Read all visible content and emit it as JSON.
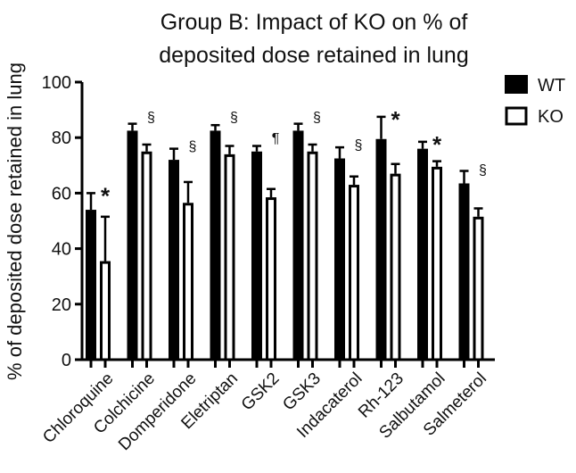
{
  "chart_data": {
    "type": "bar",
    "title_line1": "Group B: Impact of KO on % of",
    "title_line2": "deposited dose retained in lung",
    "ylabel": "% of deposited dose retained in lung",
    "ylim": [
      0,
      100
    ],
    "yticks": [
      "0",
      "20",
      "40",
      "60",
      "80",
      "100"
    ],
    "categories": [
      "Chloroquine",
      "Colchicine",
      "Domperidone",
      "Eletriptan",
      "GSK2",
      "GSK3",
      "Indacaterol",
      "Rh-123",
      "Salbutamol",
      "Salmeterol"
    ],
    "series": [
      {
        "name": "WT",
        "color": "#000000",
        "values": [
          54,
          82.5,
          72,
          82.5,
          75,
          82.5,
          72.5,
          79.5,
          76,
          63.5
        ],
        "errors": [
          6,
          2.5,
          4,
          2,
          2,
          2.5,
          4,
          8,
          2.5,
          4.5
        ]
      },
      {
        "name": "KO",
        "color": "#ffffff",
        "values": [
          35.5,
          75,
          56.5,
          74,
          58.5,
          75,
          63,
          67,
          69.5,
          51.5
        ],
        "errors": [
          16,
          2.5,
          7.5,
          3,
          3,
          2.5,
          3,
          3.5,
          2,
          3
        ]
      }
    ],
    "annotations": [
      "*",
      "§",
      "§",
      "§",
      "¶",
      "§",
      "§",
      "*",
      "*",
      "§"
    ],
    "legend_position": "top-right",
    "grid": false
  }
}
